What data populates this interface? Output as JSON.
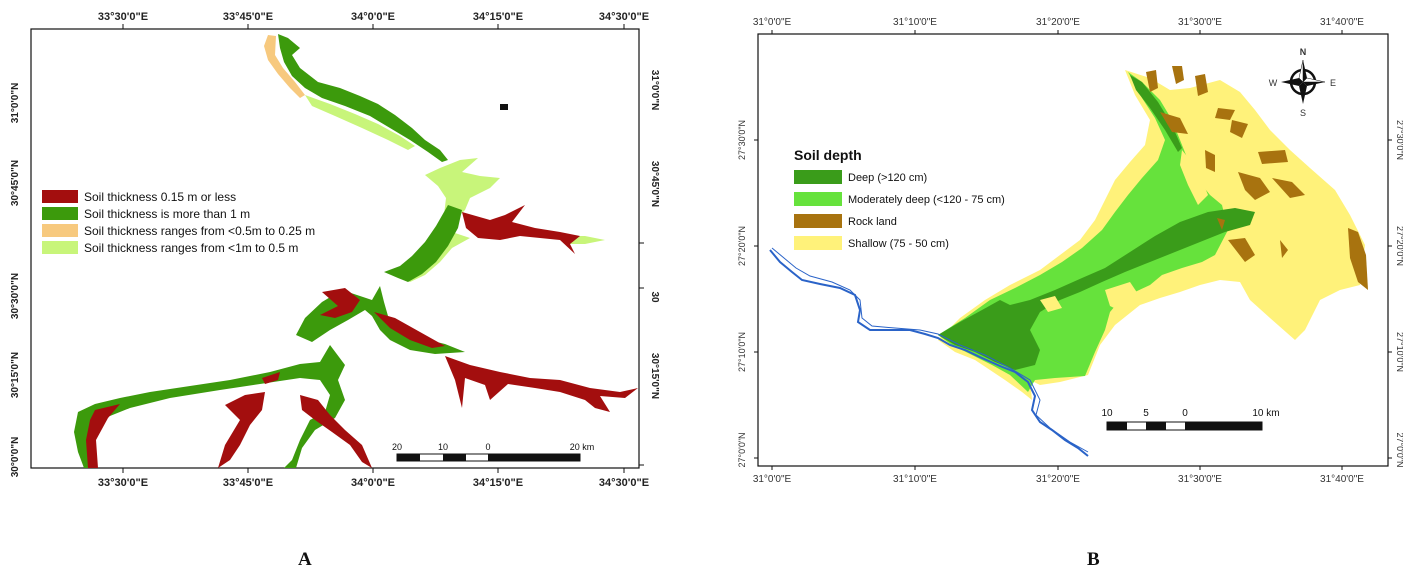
{
  "map_a": {
    "top_ticks": [
      "33°30'0\"E",
      "33°45'0\"E",
      "34°0'0\"E",
      "34°15'0\"E",
      "34°30'0\"E"
    ],
    "bottom_ticks": [
      "33°30'0\"E",
      "33°45'0\"E",
      "34°0'0\"E",
      "34°15'0\"E",
      "34°30'0\"E"
    ],
    "left_ticks": [
      "31°0'0\"N",
      "30°45'0\"N",
      "30°30'0\"N",
      "30°15'0\"N",
      "30°0'0\"N"
    ],
    "right_ticks": [
      "31°0'0\"N",
      "30°45'0\"N",
      "30",
      "30°15'0\"N"
    ],
    "legend": [
      {
        "label": "Soil thickness 0.15 m or less",
        "color": "#a30e0e"
      },
      {
        "label": "Soil thickness is more than 1 m",
        "color": "#3c9a0c"
      },
      {
        "label": "Soil thickness ranges from <0.5m to 0.25 m",
        "color": "#f7c97e"
      },
      {
        "label": "Soil thickness ranges from <1m to 0.5 m",
        "color": "#c8f57a"
      }
    ],
    "scale": {
      "labels": [
        "20",
        "10",
        "0",
        "20 km"
      ]
    }
  },
  "map_b": {
    "top_ticks": [
      "31°0'0\"E",
      "31°10'0\"E",
      "31°20'0\"E",
      "31°30'0\"E",
      "31°40'0\"E"
    ],
    "bottom_ticks": [
      "31°0'0\"E",
      "31°10'0\"E",
      "31°20'0\"E",
      "31°30'0\"E",
      "31°40'0\"E"
    ],
    "left_ticks": [
      "27°30'0\"N",
      "27°20'0\"N",
      "27°10'0\"N",
      "27°0'0\"N"
    ],
    "right_ticks": [
      "27°30'0\"N",
      "27°20'0\"N",
      "27°10'0\"N",
      "27°0'0\"N"
    ],
    "legend_title": "Soil depth",
    "legend": [
      {
        "label": "Deep (>120 cm)",
        "color": "#3a9c1a"
      },
      {
        "label": "Moderately deep (<120 - 75 cm)",
        "color": "#66e23c"
      },
      {
        "label": "Rock land",
        "color": "#a8730f"
      },
      {
        "label": "Shallow (75 - 50 cm)",
        "color": "#fff27a"
      }
    ],
    "compass": {
      "n": "N",
      "s": "S",
      "e": "E",
      "w": "W"
    },
    "scale": {
      "labels": [
        "10",
        "5",
        "0",
        "10 km"
      ]
    }
  },
  "panel_labels": {
    "a": "A",
    "b": "B"
  }
}
